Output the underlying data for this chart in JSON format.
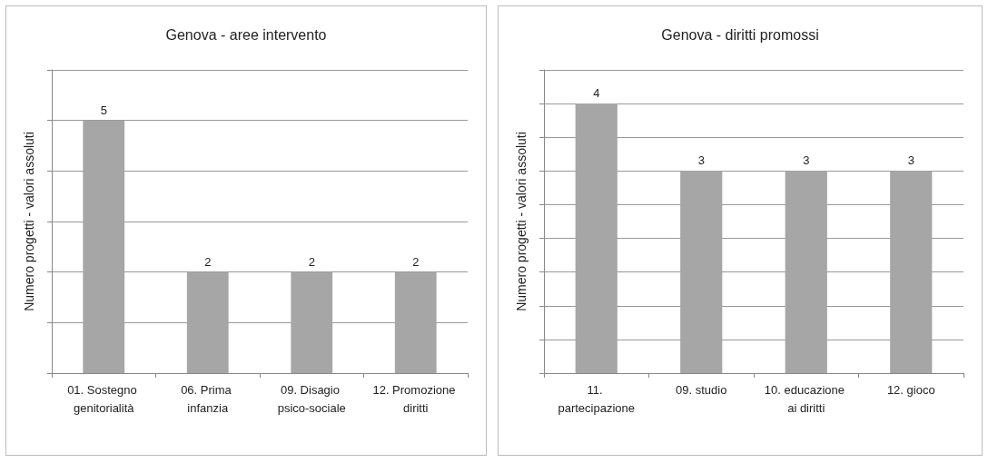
{
  "chart_data": [
    {
      "type": "bar",
      "title": "Genova - aree intervento",
      "ylabel": "Numero progetti - valori assoluti",
      "categories": [
        "01. Sostegno genitorialità",
        "06. Prima infanzia",
        "09. Disagio psico-sociale",
        "12. Promozione diritti"
      ],
      "values": [
        5,
        2,
        2,
        2
      ],
      "color": "#a6a6a6",
      "ylim": [
        0,
        6
      ],
      "yticks": [
        {
          "value": 0,
          "label": null
        },
        {
          "value": 1,
          "label": null
        },
        {
          "value": 2,
          "label": null
        },
        {
          "value": 3,
          "label": null
        },
        {
          "value": 4,
          "label": null
        },
        {
          "value": 5,
          "label": null
        },
        {
          "value": 6,
          "label": null
        }
      ],
      "grid": "y",
      "data_labels": true,
      "tick_labels": "x"
    },
    {
      "type": "bar",
      "title": "Genova - diritti promossi",
      "ylabel": "Numero progetti - valori assoluti",
      "categories": [
        "11. partecipazione",
        "09. studio",
        "10. educazione ai diritti",
        "12. gioco"
      ],
      "values": [
        4,
        3,
        3,
        3
      ],
      "color": "#a6a6a6",
      "ylim": [
        0,
        4.5
      ],
      "yticks": [
        {
          "value": 0,
          "label": null
        },
        {
          "value": 0.5,
          "label": null
        },
        {
          "value": 1,
          "label": null
        },
        {
          "value": 1.5,
          "label": null
        },
        {
          "value": 2,
          "label": null
        },
        {
          "value": 2.5,
          "label": null
        },
        {
          "value": 3,
          "label": null
        },
        {
          "value": 3.5,
          "label": null
        },
        {
          "value": 4,
          "label": null
        },
        {
          "value": 4.5,
          "label": null
        }
      ],
      "grid": "y",
      "data_labels": true,
      "tick_labels": "x"
    }
  ]
}
